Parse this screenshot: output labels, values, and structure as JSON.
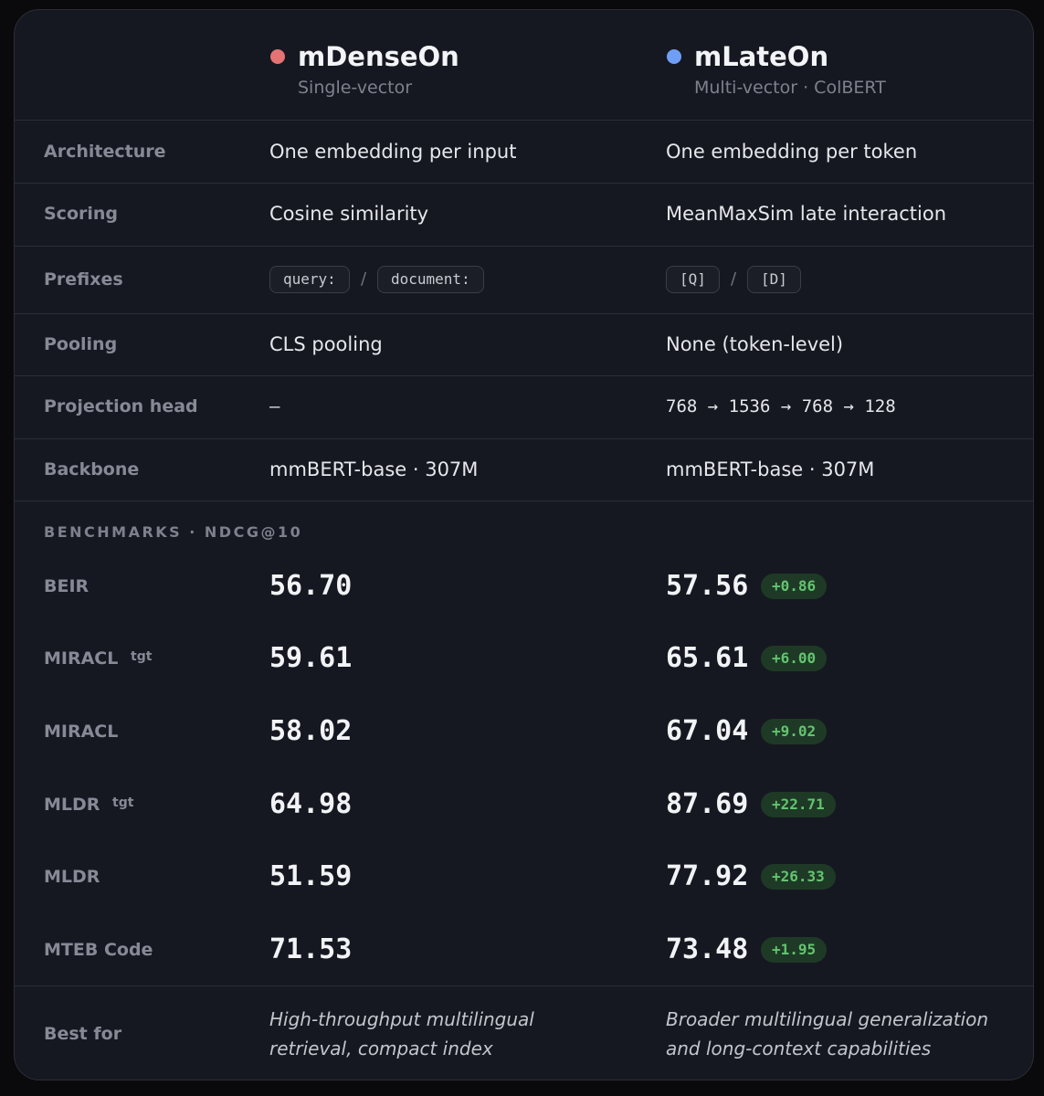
{
  "columns": [
    {
      "name": "mDenseOn",
      "subtitle": "Single-vector",
      "color": "#e57373"
    },
    {
      "name": "mLateOn",
      "subtitle": "Multi-vector · ColBERT",
      "color": "#6f9ef5"
    }
  ],
  "specs": [
    {
      "label": "Architecture",
      "values": [
        "One embedding per input",
        "One embedding per token"
      ]
    },
    {
      "label": "Scoring",
      "values": [
        "Cosine similarity",
        "MeanMaxSim late interaction"
      ]
    },
    {
      "label": "Prefixes",
      "prefixes": [
        [
          "query:",
          "document:"
        ],
        [
          "[Q]",
          "[D]"
        ]
      ],
      "separator": "/"
    },
    {
      "label": "Pooling",
      "values": [
        "CLS pooling",
        "None (token-level)"
      ]
    },
    {
      "label": "Projection head",
      "values": [
        "—",
        "768 → 1536 → 768 → 128"
      ],
      "mono": true
    },
    {
      "label": "Backbone",
      "values": [
        "mmBERT-base · 307M",
        "mmBERT-base · 307M"
      ]
    }
  ],
  "benchmarks": {
    "title": "BENCHMARKS · NDCG@10",
    "rows": [
      {
        "label": "BEIR",
        "values": [
          "56.70",
          "57.56"
        ],
        "delta": "+0.86"
      },
      {
        "label": "MIRACL",
        "tag": "tgt",
        "values": [
          "59.61",
          "65.61"
        ],
        "delta": "+6.00"
      },
      {
        "label": "MIRACL",
        "values": [
          "58.02",
          "67.04"
        ],
        "delta": "+9.02"
      },
      {
        "label": "MLDR",
        "tag": "tgt",
        "values": [
          "64.98",
          "87.69"
        ],
        "delta": "+22.71"
      },
      {
        "label": "MLDR",
        "values": [
          "51.59",
          "77.92"
        ],
        "delta": "+26.33"
      },
      {
        "label": "MTEB Code",
        "values": [
          "71.53",
          "73.48"
        ],
        "delta": "+1.95"
      }
    ]
  },
  "best_for": {
    "label": "Best for",
    "values": [
      [
        "High-throughput multilingual",
        "retrieval, compact index"
      ],
      [
        "Broader multilingual generalization",
        "and long-context capabilities"
      ]
    ]
  }
}
